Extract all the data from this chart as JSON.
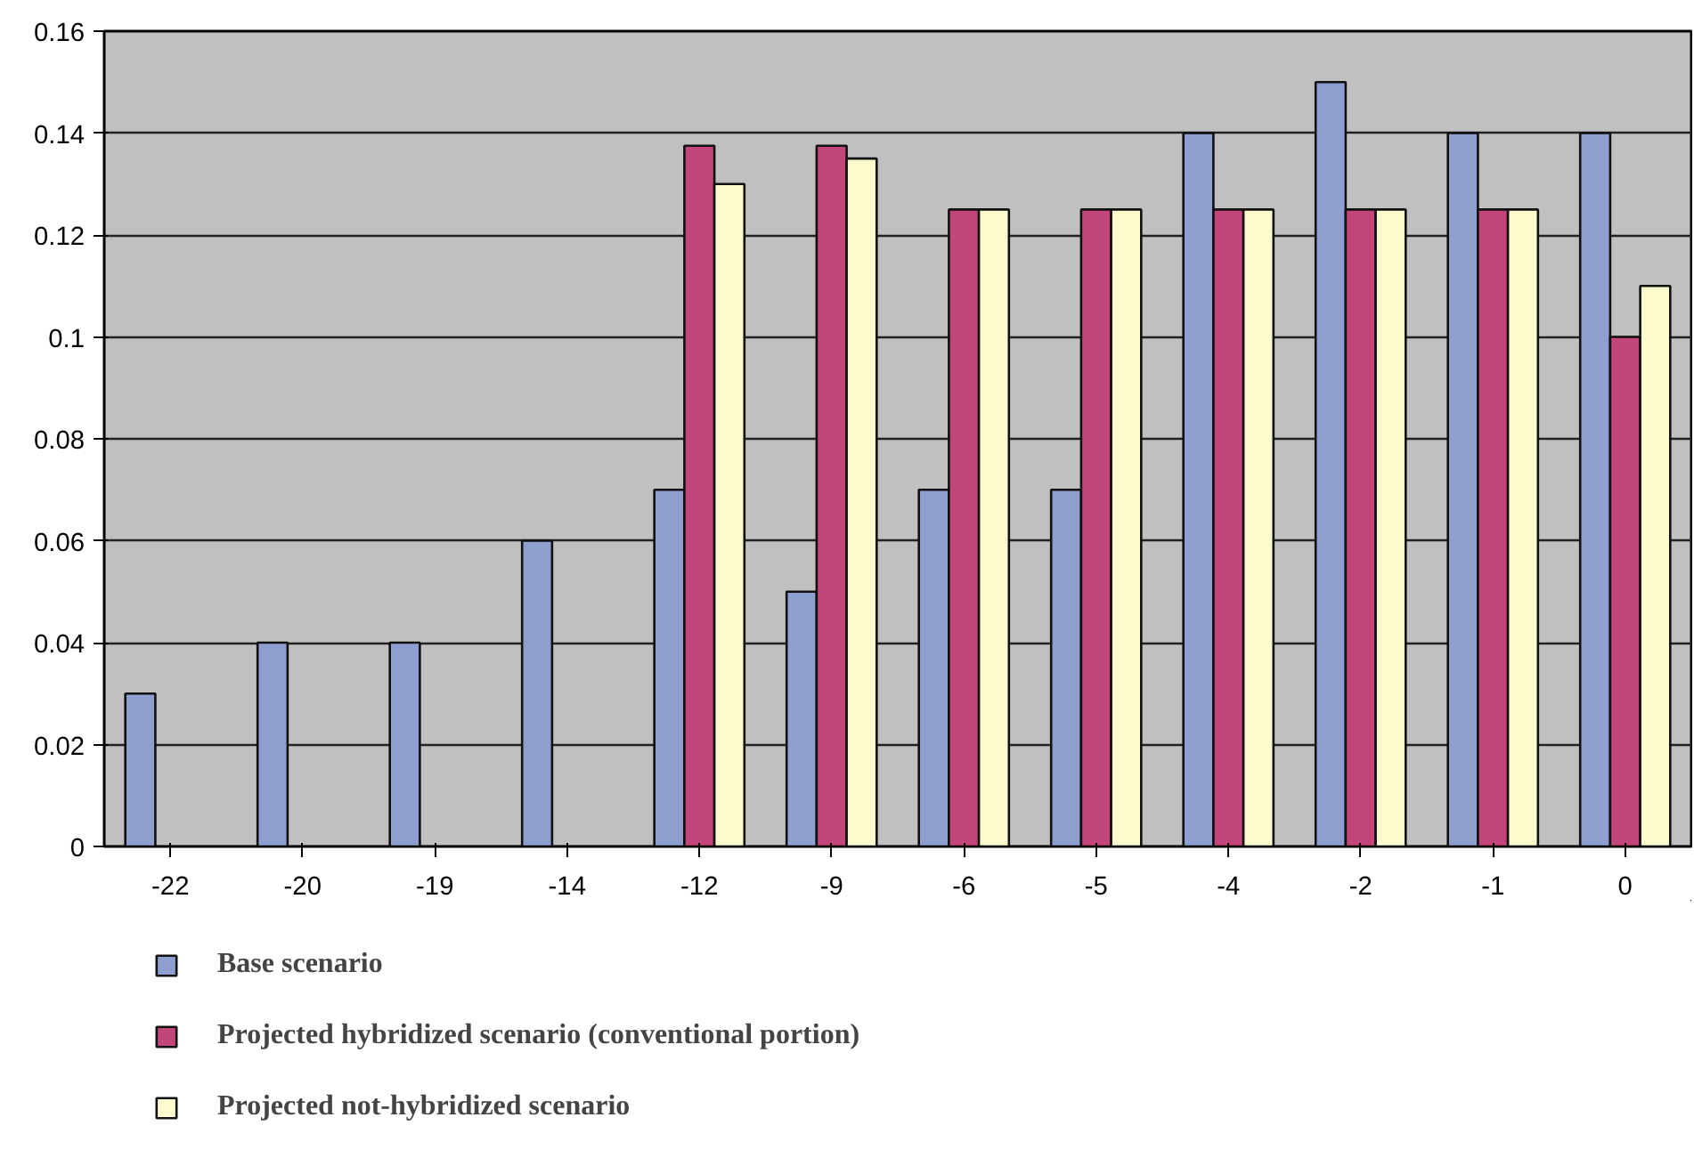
{
  "chart_data": {
    "type": "bar",
    "categories": [
      "-22",
      "-20",
      "-19",
      "-14",
      "-12",
      "-9",
      "-6",
      "-5",
      "-4",
      "-2",
      "-1",
      "0"
    ],
    "series": [
      {
        "name": "Base scenario",
        "color": "#8e9ecf",
        "values": [
          0.03,
          0.04,
          0.04,
          0.06,
          0.07,
          0.05,
          0.07,
          0.07,
          0.14,
          0.15,
          0.14,
          0.14
        ]
      },
      {
        "name": "Projected hybridized scenario (conventional portion)",
        "color": "#c3467b",
        "values": [
          null,
          null,
          null,
          null,
          0.1375,
          0.1375,
          0.125,
          0.125,
          0.125,
          0.125,
          0.125,
          0.1
        ]
      },
      {
        "name": "Projected not-hybridized scenario",
        "color": "#fdfbcd",
        "values": [
          null,
          null,
          null,
          null,
          0.13,
          0.135,
          0.125,
          0.125,
          0.125,
          0.125,
          0.125,
          0.11
        ]
      }
    ],
    "ylim": [
      0,
      0.16
    ],
    "yticks": [
      0,
      0.02,
      0.04,
      0.06,
      0.08,
      0.1,
      0.12,
      0.14,
      0.16
    ],
    "grid": "y",
    "legend": "bottom left"
  }
}
